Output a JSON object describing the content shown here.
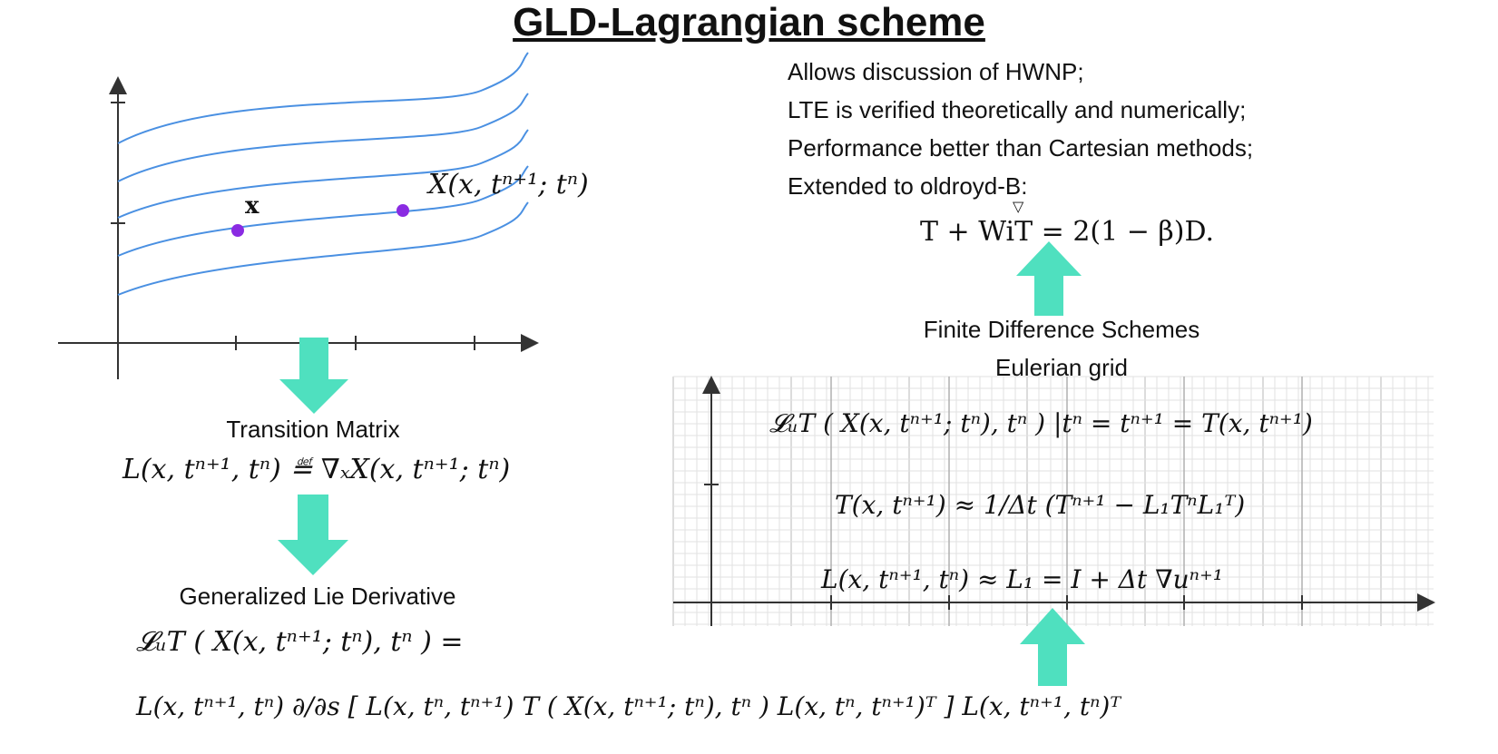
{
  "title": "GLD-Lagrangian scheme",
  "colors": {
    "curve": "#4a90e2",
    "point": "#8a2be2",
    "arrow": "#4fe0bf",
    "grid": "#cfcfcf",
    "axis": "#333333"
  },
  "top_left_plot": {
    "point_x_label": "x",
    "point_X_label": "X(x, tⁿ⁺¹; tⁿ)"
  },
  "bullets": [
    "Allows discussion of HWNP;",
    "LTE is verified theoretically and numerically;",
    "Performance better than Cartesian methods;",
    "Extended to oldroyd-B:"
  ],
  "oldroyd_equation": "T + WiT = 2(1 − β)D.",
  "finite_difference": {
    "line1": "Finite Difference Schemes",
    "line2": "Eulerian grid"
  },
  "transition_matrix": {
    "label": "Transition Matrix",
    "equation": "L(x, tⁿ⁺¹, tⁿ) ≝ ∇ₓX(x, tⁿ⁺¹; tⁿ)"
  },
  "generalized_lie": {
    "label": "Generalized Lie Derivative",
    "line1": "𝓛ᵤT ( X(x, tⁿ⁺¹; tⁿ), tⁿ ) =",
    "line2": "L(x, tⁿ⁺¹, tⁿ) ∂/∂s [ L(x, tⁿ, tⁿ⁺¹) T ( X(x, tⁿ⁺¹; tⁿ), tⁿ ) L(x, tⁿ, tⁿ⁺¹)ᵀ ] L(x, tⁿ⁺¹, tⁿ)ᵀ"
  },
  "grid_equations": {
    "eq1": "𝓛ᵤT ( X(x, tⁿ⁺¹; tⁿ), tⁿ ) |tⁿ = tⁿ⁺¹ = T(x, tⁿ⁺¹)",
    "eq2": "T(x, tⁿ⁺¹) ≈ 1/Δt (Tⁿ⁺¹ − L₁TⁿL₁ᵀ)",
    "eq3": "L(x, tⁿ⁺¹, tⁿ) ≈ L₁ = I + Δt ∇uⁿ⁺¹"
  }
}
